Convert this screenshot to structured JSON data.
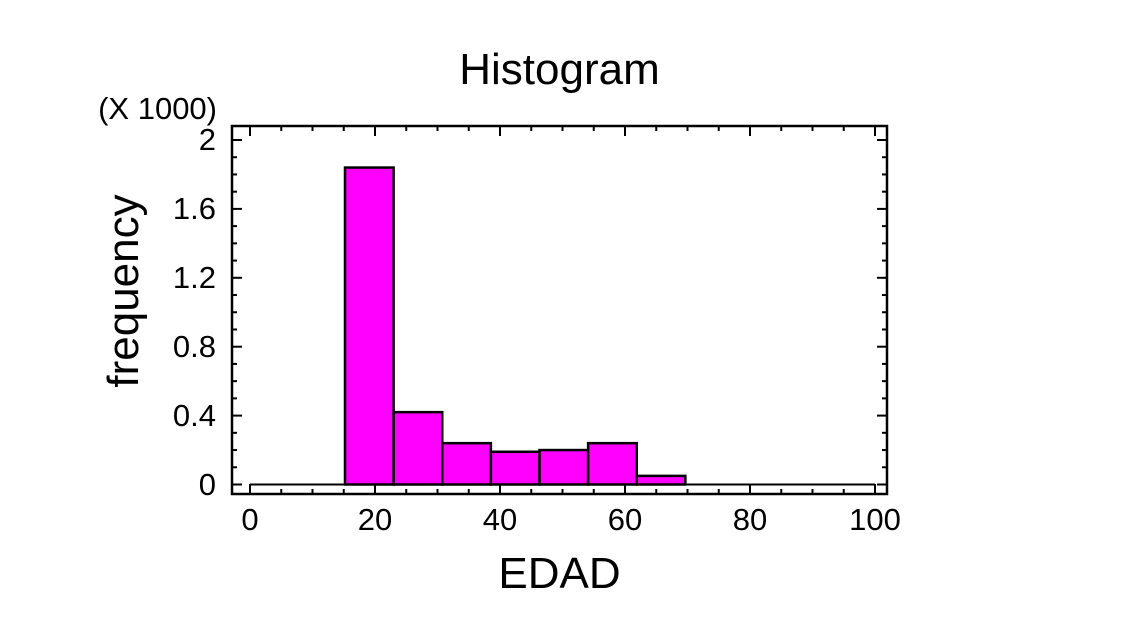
{
  "chart_data": {
    "type": "bar",
    "subtype": "histogram",
    "title": "Histogram",
    "xlabel": "EDAD",
    "ylabel": "frequency",
    "y_multiplier": "(X 1000)",
    "bins": {
      "start": 15.2,
      "width": 7.78,
      "count": 7
    },
    "values_thousands": [
      1.84,
      0.42,
      0.24,
      0.19,
      0.2,
      0.24,
      0.05
    ],
    "frequencies": [
      1840,
      420,
      240,
      190,
      200,
      240,
      50
    ],
    "x_ticks": [
      0,
      20,
      40,
      60,
      80,
      100
    ],
    "y_ticks": [
      0,
      0.4,
      0.8,
      1.2,
      1.6,
      2
    ],
    "x_minor_step": 5,
    "y_minor_step": 0.1,
    "xlim": [
      -3,
      102
    ],
    "ylim": [
      -0.06,
      2.08
    ],
    "zero_line": {
      "from_x": 0,
      "to_x": 100,
      "at_y": 0
    },
    "bar_color": "#FF00FF",
    "bar_border_color": "#000000",
    "axis_color": "#000000",
    "text_color": "#000000",
    "background_color": "#FFFFFF",
    "grid": "off",
    "legend": "none",
    "tick_style": "inward-all-four-sides"
  }
}
